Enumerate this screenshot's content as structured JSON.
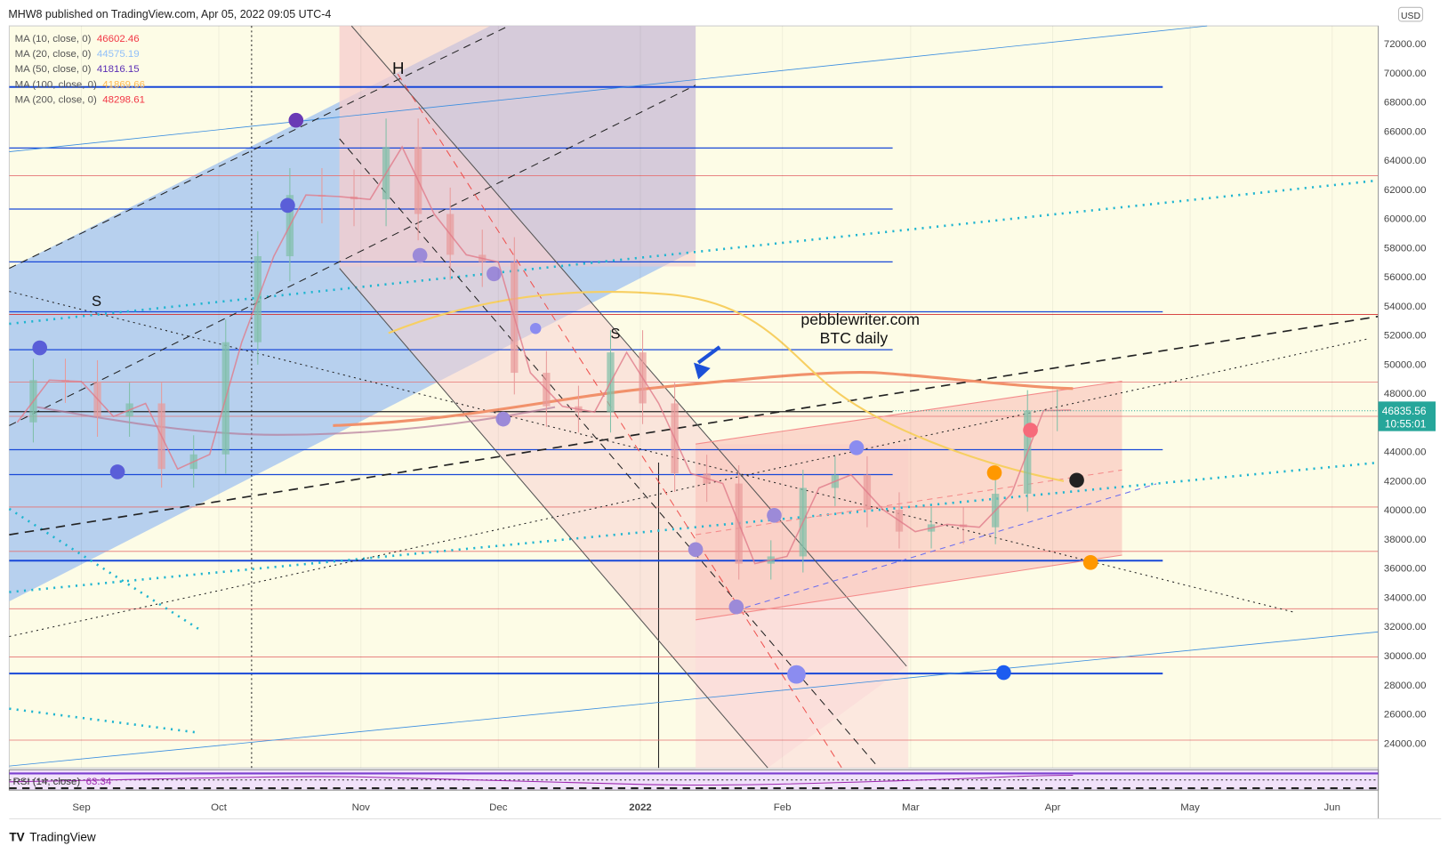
{
  "header": {
    "title": "MHW8 published on TradingView.com, Apr 05, 2022 09:05 UTC-4"
  },
  "legend": [
    {
      "label": "MA (10, close, 0)",
      "value": "46602.46",
      "color": "#f23645"
    },
    {
      "label": "MA (20, close, 0)",
      "value": "44575.19",
      "color": "#90bff9"
    },
    {
      "label": "MA (50, close, 0)",
      "value": "41816.15",
      "color": "#5b2fb5"
    },
    {
      "label": "MA (100, close, 0)",
      "value": "41869.66",
      "color": "#ffb74d"
    },
    {
      "label": "MA (200, close, 0)",
      "value": "48298.61",
      "color": "#f23645"
    }
  ],
  "annotations": {
    "site": "pebblewriter.com",
    "subtitle": "BTC daily",
    "s1": "S",
    "h": "H",
    "s2": "S"
  },
  "price_axis": {
    "currency": "USD",
    "ticks": [
      "72000.00",
      "70000.00",
      "68000.00",
      "66000.00",
      "64000.00",
      "62000.00",
      "60000.00",
      "58000.00",
      "56000.00",
      "54000.00",
      "52000.00",
      "50000.00",
      "48000.00",
      "44000.00",
      "42000.00",
      "40000.00",
      "38000.00",
      "36000.00",
      "34000.00",
      "32000.00",
      "30000.00",
      "28000.00",
      "26000.00",
      "24000.00"
    ],
    "last_price": "46835.56",
    "countdown": "10:55:01",
    "last_color": "#26a69a"
  },
  "time_axis": {
    "ticks": [
      "Sep",
      "Oct",
      "Nov",
      "Dec",
      "2022",
      "Feb",
      "Mar",
      "Apr",
      "May",
      "Jun"
    ]
  },
  "rsi": {
    "label": "RSI (14, close)",
    "value": "63.34"
  },
  "footer": {
    "brand": "TradingView"
  },
  "chart_data": {
    "type": "line",
    "title": "BTC daily",
    "symbol_currency": "USD",
    "ylim": [
      22000,
      73000
    ],
    "x_unit": "days since 2021-09-01",
    "x": [
      -14,
      -7,
      0,
      7,
      14,
      21,
      28,
      35,
      42,
      49,
      56,
      63,
      70,
      77,
      84,
      91,
      98,
      105,
      112,
      119,
      126,
      133,
      140,
      147,
      154,
      161,
      168,
      175,
      182,
      189,
      196,
      203,
      210,
      216
    ],
    "close": [
      46000,
      48900,
      48800,
      46400,
      47300,
      42800,
      43800,
      51500,
      57400,
      61600,
      61500,
      61300,
      64900,
      60300,
      57500,
      57000,
      49400,
      47100,
      46700,
      50800,
      47300,
      42500,
      41800,
      36300,
      36800,
      41500,
      42400,
      40000,
      38500,
      39000,
      38800,
      41100,
      46800,
      46835.56
    ],
    "moving_averages": {
      "MA10": 46602.46,
      "MA20": 44575.19,
      "MA50": 41816.15,
      "MA100": 41869.66,
      "MA200": 48298.61
    },
    "last_price": 46835.56
  }
}
